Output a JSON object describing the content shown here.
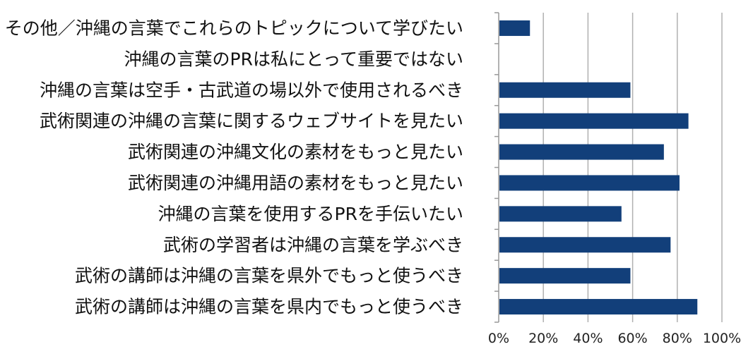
{
  "chart_data": {
    "type": "bar",
    "orientation": "horizontal",
    "categories": [
      "その他／沖縄の言葉でこれらのトピックについて学びたい",
      "沖縄の言葉のPRは私にとって重要ではない",
      "沖縄の言葉は空手・古武道の場以外で使用されるべき",
      "武術関連の沖縄の言葉に関するウェブサイトを見たい",
      "武術関連の沖縄文化の素材をもっと見たい",
      "武術関連の沖縄用語の素材をもっと見たい",
      "沖縄の言葉を使用するPRを手伝いたい",
      "武術の学習者は沖縄の言葉を学ぶべき",
      "武術の講師は沖縄の言葉を県外でもっと使うべき",
      "武術の講師は沖縄の言葉を県内でもっと使うべき"
    ],
    "values": [
      14,
      0,
      59,
      85,
      74,
      81,
      55,
      77,
      59,
      89
    ],
    "xlim": [
      0,
      100
    ],
    "ticks": [
      0,
      20,
      40,
      60,
      80,
      100
    ],
    "tick_labels": [
      "0%",
      "20%",
      "40%",
      "60%",
      "80%",
      "100%"
    ],
    "grid": true,
    "bar_color": "#123f7a",
    "grid_color": "#b0b0b0",
    "title": "",
    "xlabel": "",
    "ylabel": ""
  }
}
